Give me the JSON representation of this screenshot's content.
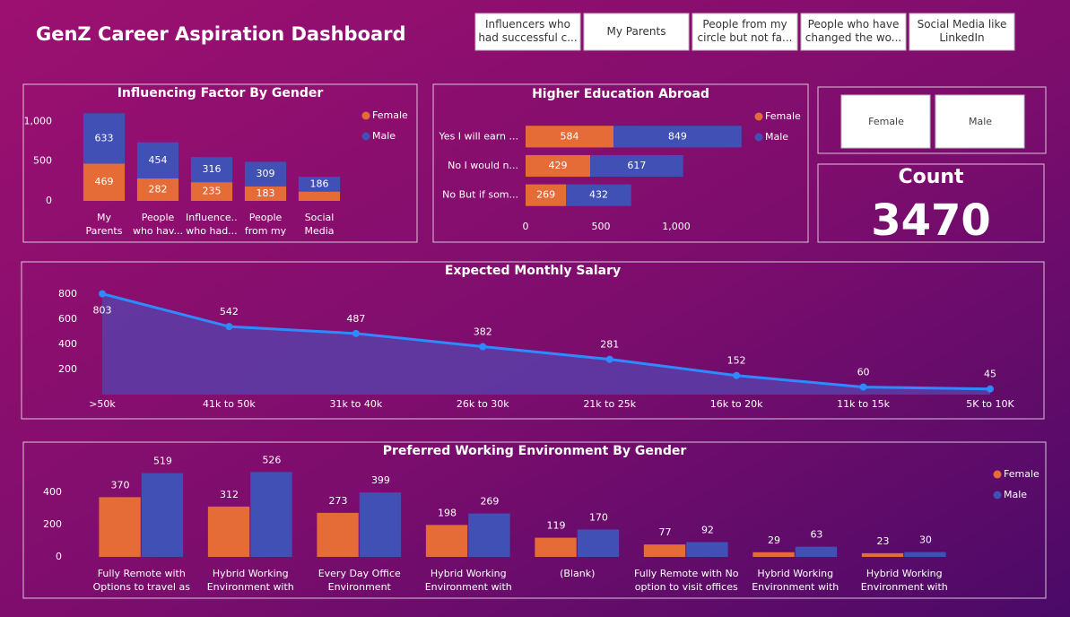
{
  "title": "GenZ Career Aspiration Dashboard",
  "slicers": [
    "Influencers who had successful c...",
    "My Parents",
    "People from my circle but not fa...",
    "People who have changed the wo...",
    "Social Media like LinkedIn"
  ],
  "gender_slicer": [
    "Female",
    "Male"
  ],
  "card": {
    "label": "Count",
    "value": 3470
  },
  "chart_data": [
    {
      "type": "bar",
      "stacked": true,
      "orientation": "vertical",
      "title": "Influencing Factor By Gender",
      "categories": [
        "My Parents",
        "People who hav...",
        "Influence... who had...",
        "People from my ...",
        "Social Media lik..."
      ],
      "series": [
        {
          "name": "Female",
          "color": "#e66c37",
          "values": [
            469,
            282,
            235,
            183,
            117
          ],
          "value_labels": [
            "469",
            "282",
            "235",
            "183",
            null
          ]
        },
        {
          "name": "Male",
          "color": "#4150b5",
          "values": [
            633,
            454,
            316,
            309,
            186
          ]
        }
      ],
      "ylim": [
        0,
        1150
      ],
      "yticks": [
        0,
        500,
        {
          "value": 1000,
          "label": "1,000"
        }
      ],
      "grid": false,
      "legend": "top-right"
    },
    {
      "type": "bar",
      "stacked": true,
      "orientation": "horizontal",
      "title": "Higher Education Abroad",
      "categories": [
        "Yes I will earn ...",
        "No I would n...",
        "No But if som..."
      ],
      "series": [
        {
          "name": "Female",
          "color": "#e66c37",
          "values": [
            584,
            429,
            269
          ]
        },
        {
          "name": "Male",
          "color": "#4150b5",
          "values": [
            849,
            617,
            432
          ]
        }
      ],
      "xlim": [
        0,
        1500
      ],
      "xticks": [
        0,
        500,
        {
          "value": 1000,
          "label": "1,000"
        }
      ],
      "grid": false,
      "legend": "top-right"
    },
    {
      "type": "area",
      "title": "Expected Monthly Salary",
      "categories": [
        ">50k",
        "41k to 50k",
        "31k to 40k",
        "26k to 30k",
        "21k to 25k",
        "16k to 20k",
        "11k to 15k",
        "5K to 10K"
      ],
      "values": [
        803,
        542,
        487,
        382,
        281,
        152,
        60,
        45
      ],
      "color": "#2e8bff",
      "ylim": [
        0,
        850
      ],
      "yticks": [
        200,
        400,
        600,
        800
      ],
      "grid": false
    },
    {
      "type": "bar",
      "stacked": false,
      "orientation": "vertical",
      "title": "Preferred Working Environment By Gender",
      "categories": [
        "Fully Remote with Options to travel as ...",
        "Hybrid Working Environment with m...",
        "Every Day Office Environment",
        "Hybrid Working Environment with les...",
        "(Blank)",
        "Fully Remote with No option to visit offices",
        "Hybrid Working Environment with les...",
        "Hybrid Working Environment with les..."
      ],
      "series": [
        {
          "name": "Female",
          "color": "#e66c37",
          "values": [
            370,
            312,
            273,
            198,
            119,
            77,
            29,
            23
          ]
        },
        {
          "name": "Male",
          "color": "#4150b5",
          "values": [
            519,
            526,
            399,
            269,
            170,
            92,
            63,
            30
          ]
        }
      ],
      "ylim": [
        0,
        550
      ],
      "yticks": [
        0,
        200,
        400
      ],
      "grid": false,
      "legend": "top-right"
    }
  ]
}
